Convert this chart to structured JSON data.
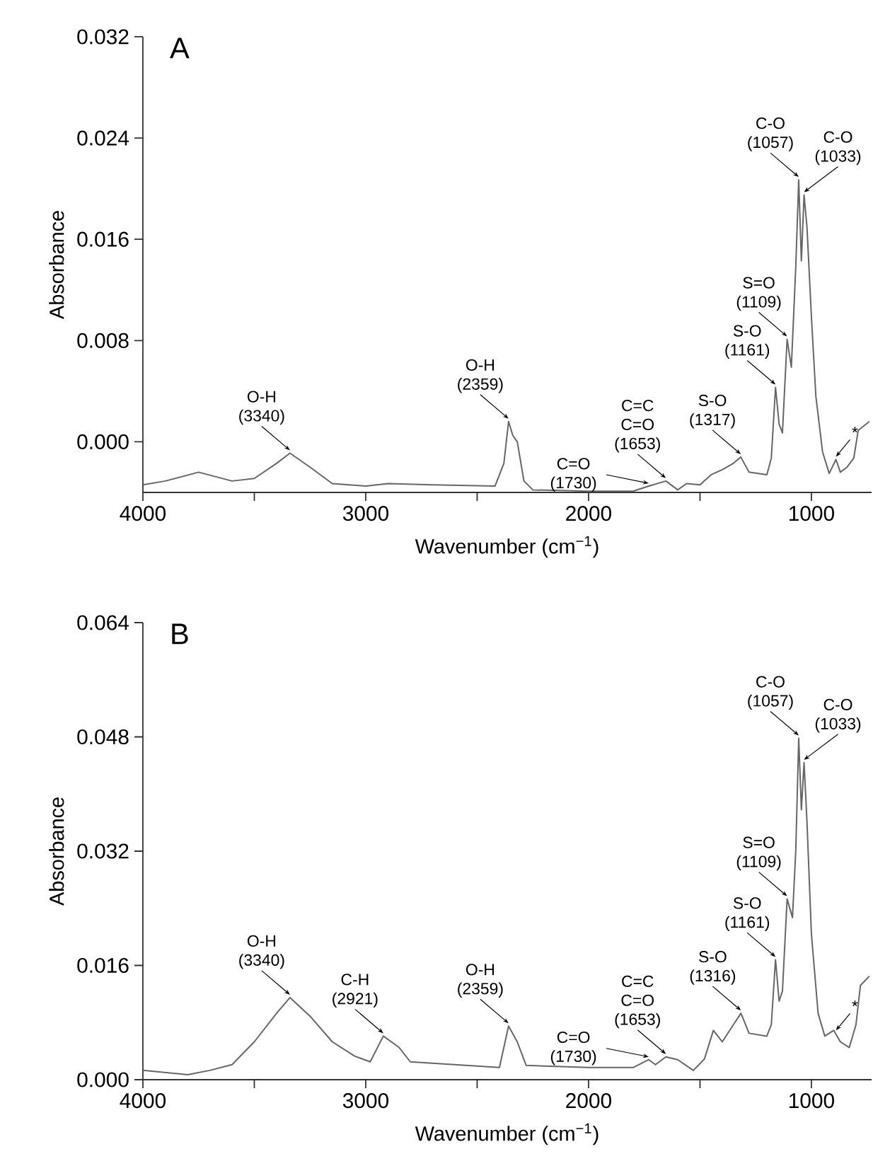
{
  "chart_data": [
    {
      "type": "line",
      "title": "A",
      "xlabel": "Wavenumber (cm$^{−1}$)",
      "ylabel": "Absorbance",
      "xlim": [
        4000,
        730
      ],
      "ylim": [
        -0.004,
        0.032
      ],
      "xticks": [
        4000,
        {
          "value": 3500,
          "label": null
        },
        3000,
        {
          "value": 2500,
          "label": null
        },
        2000,
        {
          "value": 1500,
          "label": null
        },
        1000
      ],
      "yticks": [
        {
          "value": 0,
          "label": "0.000"
        },
        0.008,
        0.016,
        0.024,
        0.032
      ],
      "series": [
        {
          "color": "#666666",
          "x": [
            4000,
            3900,
            3750,
            3600,
            3500,
            3400,
            3340,
            3250,
            3150,
            3000,
            2900,
            2700,
            2420,
            2380,
            2359,
            2340,
            2320,
            2290,
            2250,
            2000,
            1800,
            1730,
            1653,
            1600,
            1560,
            1500,
            1450,
            1400,
            1350,
            1317,
            1280,
            1200,
            1180,
            1161,
            1145,
            1130,
            1109,
            1090,
            1070,
            1057,
            1045,
            1033,
            1020,
            1000,
            980,
            950,
            920,
            890,
            870,
            840,
            810,
            790,
            740
          ],
          "values": [
            -0.0034,
            -0.0031,
            -0.0024,
            -0.0031,
            -0.0029,
            -0.0017,
            -0.0009,
            -0.002,
            -0.0033,
            -0.0035,
            -0.0033,
            -0.0034,
            -0.0035,
            -0.0017,
            0.0016,
            0.0005,
            0.0,
            -0.0031,
            -0.0038,
            -0.0039,
            -0.0039,
            -0.0035,
            -0.0031,
            -0.0038,
            -0.0033,
            -0.0034,
            -0.0026,
            -0.0022,
            -0.0017,
            -0.0012,
            -0.0024,
            -0.0026,
            -0.0013,
            0.0043,
            0.0014,
            0.0007,
            0.0081,
            0.0059,
            0.0139,
            0.0207,
            0.0143,
            0.0195,
            0.017,
            0.0099,
            0.0036,
            -0.0008,
            -0.0025,
            -0.0014,
            -0.0024,
            -0.002,
            -0.0013,
            0.0009,
            0.0016
          ]
        }
      ],
      "annotations": [
        {
          "text": "O-H (3340)",
          "x": 3340,
          "y": -0.0009
        },
        {
          "text": "O-H (2359)",
          "x": 2359,
          "y": 0.0016
        },
        {
          "text": "C=O (1730)",
          "x": 1730,
          "y": -0.0035
        },
        {
          "text": "C=C C=O (1653)",
          "x": 1653,
          "y": -0.0031
        },
        {
          "text": "S-O (1317)",
          "x": 1317,
          "y": -0.0012
        },
        {
          "text": "S-O (1161)",
          "x": 1161,
          "y": 0.0043
        },
        {
          "text": "S=O (1109)",
          "x": 1109,
          "y": 0.0081
        },
        {
          "text": "C-O (1057)",
          "x": 1057,
          "y": 0.0207
        },
        {
          "text": "C-O (1033)",
          "x": 1033,
          "y": 0.0195
        },
        {
          "text": "*",
          "x": 890,
          "y": -0.0014
        }
      ]
    },
    {
      "type": "line",
      "title": "B",
      "xlabel": "Wavenumber (cm$^{−1}$)",
      "ylabel": "Absorbance",
      "xlim": [
        4000,
        730
      ],
      "ylim": [
        0,
        0.064
      ],
      "xticks": [
        4000,
        {
          "value": 3500,
          "label": null
        },
        3000,
        {
          "value": 2500,
          "label": null
        },
        2000,
        {
          "value": 1500,
          "label": null
        },
        1000
      ],
      "yticks": [
        {
          "value": 0,
          "label": "0.000"
        },
        0.016,
        0.032,
        0.048,
        0.064
      ],
      "series": [
        {
          "color": "#666666",
          "x": [
            4000,
            3800,
            3700,
            3600,
            3500,
            3400,
            3340,
            3250,
            3150,
            3050,
            2980,
            2921,
            2850,
            2800,
            2600,
            2400,
            2359,
            2320,
            2280,
            2000,
            1800,
            1730,
            1700,
            1653,
            1600,
            1530,
            1480,
            1440,
            1400,
            1350,
            1316,
            1280,
            1200,
            1180,
            1161,
            1145,
            1130,
            1109,
            1085,
            1070,
            1057,
            1045,
            1033,
            1020,
            1000,
            970,
            940,
            900,
            870,
            830,
            800,
            780,
            740
          ],
          "values": [
            0.0013,
            0.0007,
            0.0013,
            0.0021,
            0.0053,
            0.0093,
            0.0115,
            0.0089,
            0.0053,
            0.0033,
            0.0025,
            0.0061,
            0.0045,
            0.0025,
            0.0021,
            0.0017,
            0.0075,
            0.0053,
            0.002,
            0.0017,
            0.0017,
            0.0028,
            0.0021,
            0.0032,
            0.0028,
            0.0013,
            0.0029,
            0.0069,
            0.0053,
            0.0077,
            0.0093,
            0.0065,
            0.0061,
            0.0077,
            0.0168,
            0.011,
            0.0124,
            0.0253,
            0.0227,
            0.0322,
            0.0478,
            0.0378,
            0.0444,
            0.0362,
            0.0204,
            0.0093,
            0.0061,
            0.0069,
            0.0053,
            0.0045,
            0.0077,
            0.0132,
            0.0145
          ]
        }
      ],
      "annotations": [
        {
          "text": "O-H (3340)",
          "x": 3340,
          "y": 0.0115
        },
        {
          "text": "C-H (2921)",
          "x": 2921,
          "y": 0.0061
        },
        {
          "text": "O-H (2359)",
          "x": 2359,
          "y": 0.0075
        },
        {
          "text": "C=O (1730)",
          "x": 1730,
          "y": 0.0028
        },
        {
          "text": "C=C C=O (1653)",
          "x": 1653,
          "y": 0.0032
        },
        {
          "text": "S-O (1316)",
          "x": 1316,
          "y": 0.0093
        },
        {
          "text": "S-O (1161)",
          "x": 1161,
          "y": 0.0168
        },
        {
          "text": "S=O (1109)",
          "x": 1109,
          "y": 0.0253
        },
        {
          "text": "C-O (1057)",
          "x": 1057,
          "y": 0.0478
        },
        {
          "text": "C-O (1033)",
          "x": 1033,
          "y": 0.0444
        },
        {
          "text": "*",
          "x": 890,
          "y": 0.0065
        }
      ]
    }
  ]
}
